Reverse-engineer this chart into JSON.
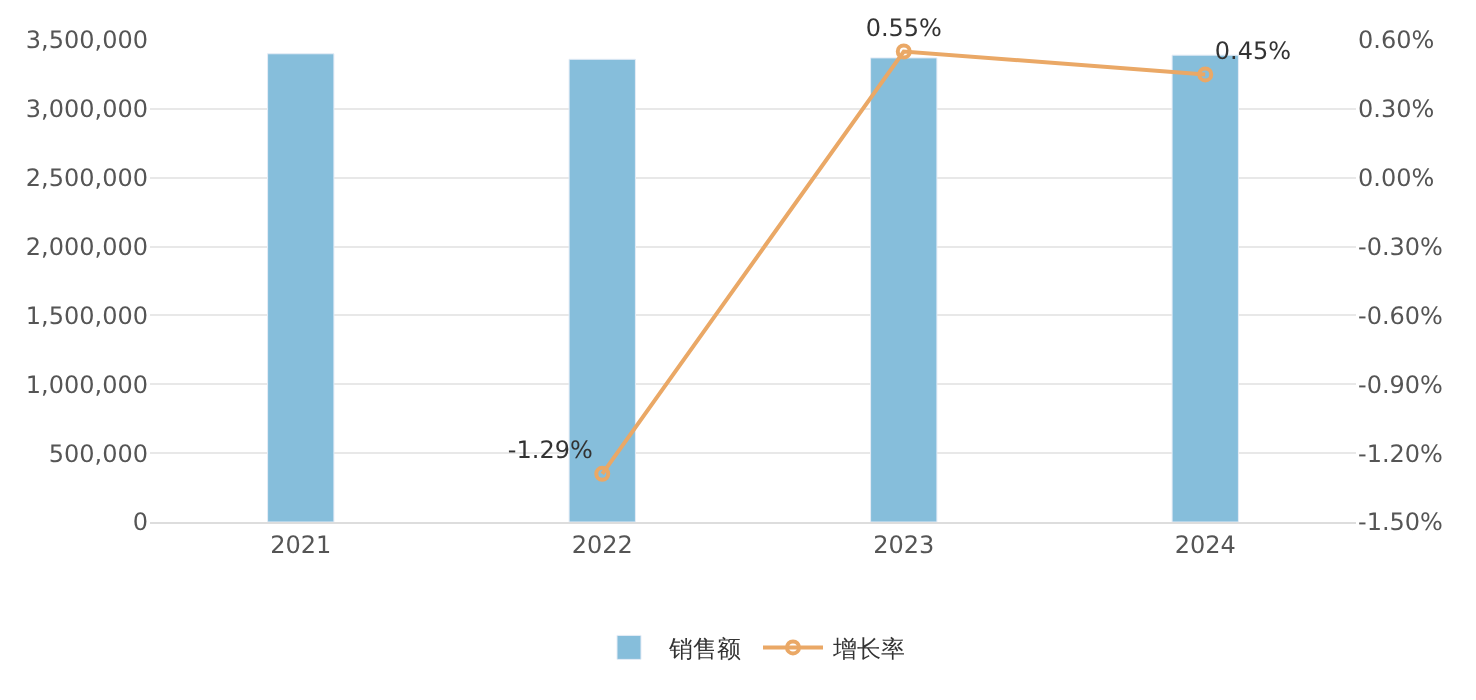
{
  "chart_data": {
    "type": "bar",
    "categories": [
      "2021",
      "2022",
      "2023",
      "2024"
    ],
    "series": [
      {
        "name": "销售额",
        "color": "#86bedb",
        "values": [
          3400000,
          3360000,
          3370000,
          3390000
        ]
      },
      {
        "name": "增长率",
        "type": "line",
        "axis": "y2",
        "color": "#eaa866",
        "marker": "circle",
        "values": [
          null,
          -1.29,
          0.55,
          0.45
        ],
        "value_labels": [
          null,
          "-1.29%",
          "0.55%",
          "0.45%"
        ]
      }
    ],
    "ylim": [
      0,
      3500000
    ],
    "yticks": [
      {
        "value": 0,
        "label": "0"
      },
      {
        "value": 500000,
        "label": "500,000"
      },
      {
        "value": 1000000,
        "label": "1,000,000"
      },
      {
        "value": 1500000,
        "label": "1,500,000"
      },
      {
        "value": 2000000,
        "label": "2,000,000"
      },
      {
        "value": 2500000,
        "label": "2,500,000"
      },
      {
        "value": 3000000,
        "label": "3,000,000"
      },
      {
        "value": 3500000,
        "label": "3,500,000"
      }
    ],
    "y2lim": [
      -1.5,
      0.6
    ],
    "y2ticks": [
      {
        "value": -1.5,
        "label": "-1.50%"
      },
      {
        "value": -1.2,
        "label": "-1.20%"
      },
      {
        "value": -0.9,
        "label": "-0.90%"
      },
      {
        "value": -0.6,
        "label": "-0.60%"
      },
      {
        "value": -0.3,
        "label": "-0.30%"
      },
      {
        "value": 0,
        "label": "0.00%"
      },
      {
        "value": 0.3,
        "label": "0.30%"
      },
      {
        "value": 0.6,
        "label": "0.60%"
      }
    ],
    "grid": "y",
    "legend": "bottom"
  }
}
